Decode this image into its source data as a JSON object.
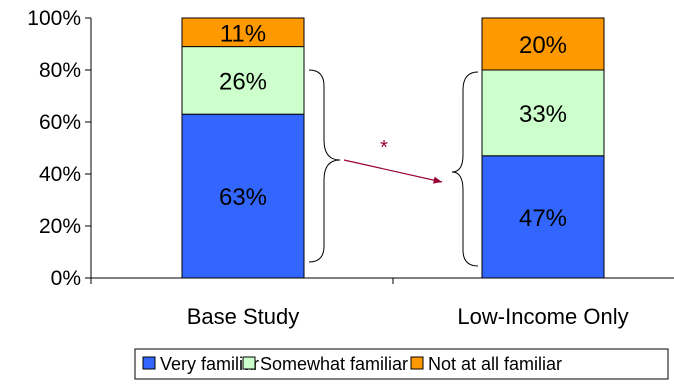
{
  "chart_data": {
    "type": "bar",
    "stacked": true,
    "percent_stacked": true,
    "categories": [
      "Base Study",
      "Low-Income Only"
    ],
    "series": [
      {
        "name": "Very familiar",
        "color": "#3366FF",
        "values": [
          63,
          47
        ],
        "labels": [
          "63%",
          "47%"
        ]
      },
      {
        "name": "Somewhat familiar",
        "color": "#CCFFCC",
        "values": [
          26,
          33
        ],
        "labels": [
          "26%",
          "33%"
        ]
      },
      {
        "name": "Not at all familiar",
        "color": "#FF9900",
        "values": [
          11,
          20
        ],
        "labels": [
          "11%",
          "20%"
        ]
      }
    ],
    "ylim": [
      0,
      100
    ],
    "yticks": [
      0,
      20,
      40,
      60,
      80,
      100
    ],
    "ytick_labels": [
      "0%",
      "20%",
      "40%",
      "60%",
      "80%",
      "100%"
    ],
    "title": "",
    "xlabel": "",
    "ylabel": "",
    "legend_position": "bottom",
    "grid": false,
    "annotation": {
      "text": "*",
      "color": "#990033",
      "arrow_color": "#990033"
    }
  }
}
